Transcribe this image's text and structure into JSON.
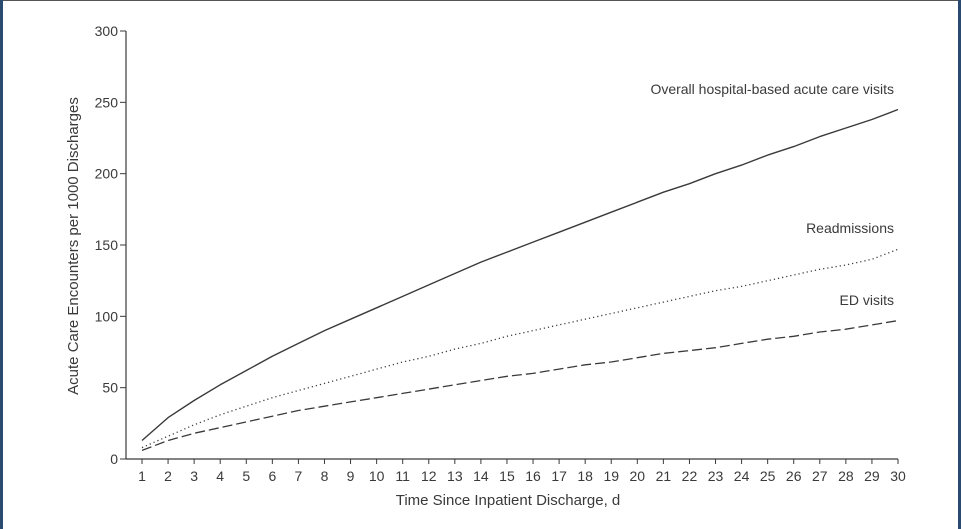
{
  "chart_data": {
    "type": "line",
    "xlabel": "Time Since Inpatient Discharge, d",
    "ylabel": "Acute Care Encounters per 1000 Discharges",
    "xlim": [
      1,
      30
    ],
    "ylim": [
      0,
      300
    ],
    "y_ticks": [
      0,
      50,
      100,
      150,
      200,
      250,
      300
    ],
    "x": [
      1,
      2,
      3,
      4,
      5,
      6,
      7,
      8,
      9,
      10,
      11,
      12,
      13,
      14,
      15,
      16,
      17,
      18,
      19,
      20,
      21,
      22,
      23,
      24,
      25,
      26,
      27,
      28,
      29,
      30
    ],
    "grid": false,
    "legend": "direct labels at line ends",
    "series": [
      {
        "name": "Overall hospital-based acute care visits",
        "line_style": "solid",
        "color": "#3a3a3a",
        "values": [
          13,
          29,
          41,
          52,
          62,
          72,
          81,
          90,
          98,
          106,
          114,
          122,
          130,
          138,
          145,
          152,
          159,
          166,
          173,
          180,
          187,
          193,
          200,
          206,
          213,
          219,
          226,
          232,
          238,
          245
        ]
      },
      {
        "name": "Readmissions",
        "line_style": "dotted",
        "color": "#3a3a3a",
        "values": [
          8,
          16,
          24,
          31,
          37,
          43,
          48,
          53,
          58,
          63,
          68,
          72,
          77,
          81,
          86,
          90,
          94,
          98,
          102,
          106,
          110,
          114,
          118,
          121,
          125,
          129,
          133,
          136,
          140,
          147
        ]
      },
      {
        "name": "ED visits",
        "line_style": "dashed",
        "color": "#3a3a3a",
        "values": [
          6,
          13,
          18,
          22,
          26,
          30,
          34,
          37,
          40,
          43,
          46,
          49,
          52,
          55,
          58,
          60,
          63,
          66,
          68,
          71,
          74,
          76,
          78,
          81,
          84,
          86,
          89,
          91,
          94,
          97
        ]
      }
    ]
  }
}
